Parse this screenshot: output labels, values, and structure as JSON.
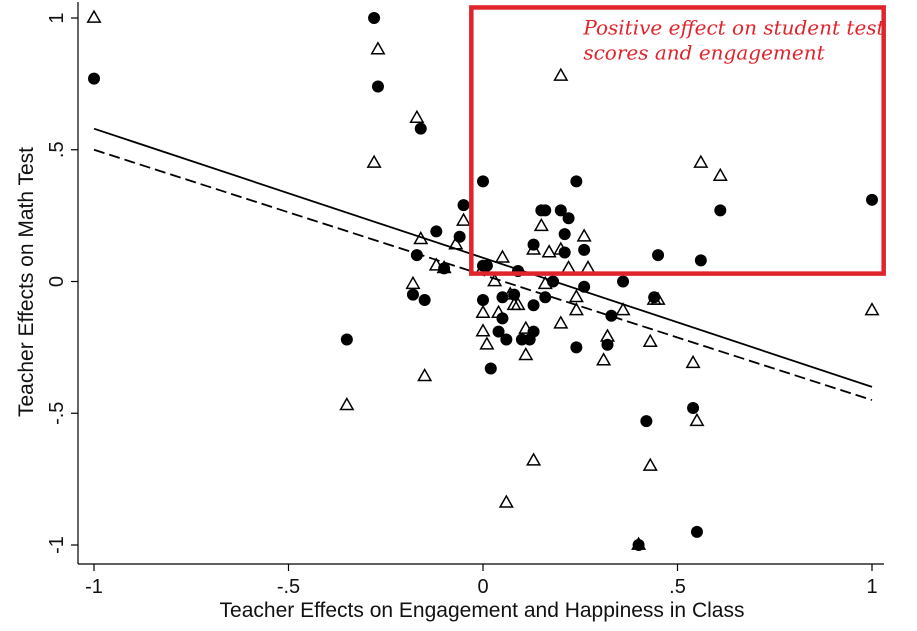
{
  "chart_data": {
    "type": "scatter",
    "xlabel": "Teacher Effects on Engagement and Happiness in Class",
    "ylabel": "Teacher Effects on Math Test",
    "xlim": [
      -1,
      1
    ],
    "ylim": [
      -1,
      1
    ],
    "xticks": [
      {
        "value": -1,
        "label": "-1"
      },
      {
        "value": -0.5,
        "label": "-.5"
      },
      {
        "value": 0,
        "label": "0"
      },
      {
        "value": 0.5,
        "label": ".5"
      },
      {
        "value": 1,
        "label": "1"
      }
    ],
    "yticks": [
      {
        "value": -1,
        "label": "-1"
      },
      {
        "value": -0.5,
        "label": "-.5"
      },
      {
        "value": 0,
        "label": "0"
      },
      {
        "value": 0.5,
        "label": ".5"
      },
      {
        "value": 1,
        "label": "1"
      }
    ],
    "grid": false,
    "legend": "none",
    "series": [
      {
        "marker": "filled-circle",
        "color": "#000000",
        "points": [
          [
            -1.0,
            0.77
          ],
          [
            -0.28,
            1.0
          ],
          [
            -0.27,
            0.74
          ],
          [
            -0.16,
            0.58
          ],
          [
            -0.35,
            -0.22
          ],
          [
            -0.18,
            -0.05
          ],
          [
            -0.15,
            -0.07
          ],
          [
            -0.17,
            0.1
          ],
          [
            -0.12,
            0.19
          ],
          [
            -0.1,
            0.05
          ],
          [
            -0.06,
            0.17
          ],
          [
            -0.05,
            0.29
          ],
          [
            0.0,
            0.38
          ],
          [
            0.0,
            0.06
          ],
          [
            0.01,
            0.06
          ],
          [
            0.0,
            -0.07
          ],
          [
            0.02,
            -0.33
          ],
          [
            0.04,
            -0.19
          ],
          [
            0.05,
            -0.14
          ],
          [
            0.05,
            -0.06
          ],
          [
            0.06,
            -0.22
          ],
          [
            0.08,
            -0.05
          ],
          [
            0.09,
            0.04
          ],
          [
            0.1,
            -0.22
          ],
          [
            0.12,
            -0.22
          ],
          [
            0.13,
            -0.19
          ],
          [
            0.13,
            -0.09
          ],
          [
            0.13,
            0.14
          ],
          [
            0.15,
            0.27
          ],
          [
            0.16,
            0.27
          ],
          [
            0.16,
            -0.06
          ],
          [
            0.18,
            0.0
          ],
          [
            0.2,
            0.27
          ],
          [
            0.21,
            0.18
          ],
          [
            0.21,
            0.11
          ],
          [
            0.22,
            0.24
          ],
          [
            0.24,
            0.38
          ],
          [
            0.24,
            -0.25
          ],
          [
            0.26,
            -0.02
          ],
          [
            0.26,
            0.12
          ],
          [
            0.33,
            -0.13
          ],
          [
            0.32,
            -0.24
          ],
          [
            0.36,
            0.0
          ],
          [
            0.42,
            -0.53
          ],
          [
            0.44,
            -0.06
          ],
          [
            0.45,
            0.1
          ],
          [
            0.4,
            -1.0
          ],
          [
            0.54,
            -0.48
          ],
          [
            0.55,
            -0.95
          ],
          [
            0.56,
            0.08
          ],
          [
            0.61,
            0.27
          ],
          [
            1.0,
            0.31
          ]
        ]
      },
      {
        "marker": "hollow-triangle",
        "color": "#000000",
        "points": [
          [
            -1.0,
            1.0
          ],
          [
            -0.27,
            0.88
          ],
          [
            -0.28,
            0.45
          ],
          [
            -0.17,
            0.62
          ],
          [
            -0.35,
            -0.47
          ],
          [
            -0.15,
            -0.36
          ],
          [
            -0.18,
            -0.01
          ],
          [
            -0.16,
            0.16
          ],
          [
            -0.12,
            0.06
          ],
          [
            -0.1,
            0.05
          ],
          [
            -0.07,
            0.14
          ],
          [
            -0.05,
            0.23
          ],
          [
            0.0,
            0.05
          ],
          [
            0.0,
            -0.12
          ],
          [
            0.0,
            -0.19
          ],
          [
            0.01,
            -0.24
          ],
          [
            0.03,
            0.0
          ],
          [
            0.04,
            -0.12
          ],
          [
            0.05,
            0.09
          ],
          [
            0.06,
            -0.84
          ],
          [
            0.07,
            -0.05
          ],
          [
            0.08,
            -0.09
          ],
          [
            0.09,
            -0.09
          ],
          [
            0.11,
            -0.18
          ],
          [
            0.11,
            -0.28
          ],
          [
            0.13,
            -0.68
          ],
          [
            0.13,
            0.12
          ],
          [
            0.15,
            0.21
          ],
          [
            0.16,
            -0.01
          ],
          [
            0.17,
            0.11
          ],
          [
            0.2,
            0.12
          ],
          [
            0.2,
            0.78
          ],
          [
            0.2,
            -0.16
          ],
          [
            0.22,
            0.05
          ],
          [
            0.24,
            -0.06
          ],
          [
            0.24,
            -0.11
          ],
          [
            0.26,
            0.17
          ],
          [
            0.27,
            0.05
          ],
          [
            0.31,
            -0.3
          ],
          [
            0.32,
            -0.21
          ],
          [
            0.36,
            -0.11
          ],
          [
            0.4,
            -1.0
          ],
          [
            0.43,
            -0.23
          ],
          [
            0.43,
            -0.7
          ],
          [
            0.44,
            -0.07
          ],
          [
            0.45,
            -0.07
          ],
          [
            0.54,
            -0.31
          ],
          [
            0.55,
            -0.53
          ],
          [
            0.56,
            0.45
          ],
          [
            0.61,
            0.4
          ],
          [
            1.0,
            -0.11
          ]
        ]
      }
    ],
    "fit_lines": [
      {
        "style": "solid",
        "color": "#000000",
        "x": [
          -1,
          1
        ],
        "y": [
          0.58,
          -0.4
        ]
      },
      {
        "style": "dashed",
        "color": "#000000",
        "x": [
          -1,
          1
        ],
        "y": [
          0.5,
          -0.45
        ]
      }
    ],
    "highlight_region": {
      "x": [
        -0.03,
        1.03
      ],
      "y": [
        0.03,
        1.04
      ],
      "color": "#e0242c",
      "text_lines": [
        "Positive effect on student test",
        "scores and engagement"
      ]
    }
  }
}
